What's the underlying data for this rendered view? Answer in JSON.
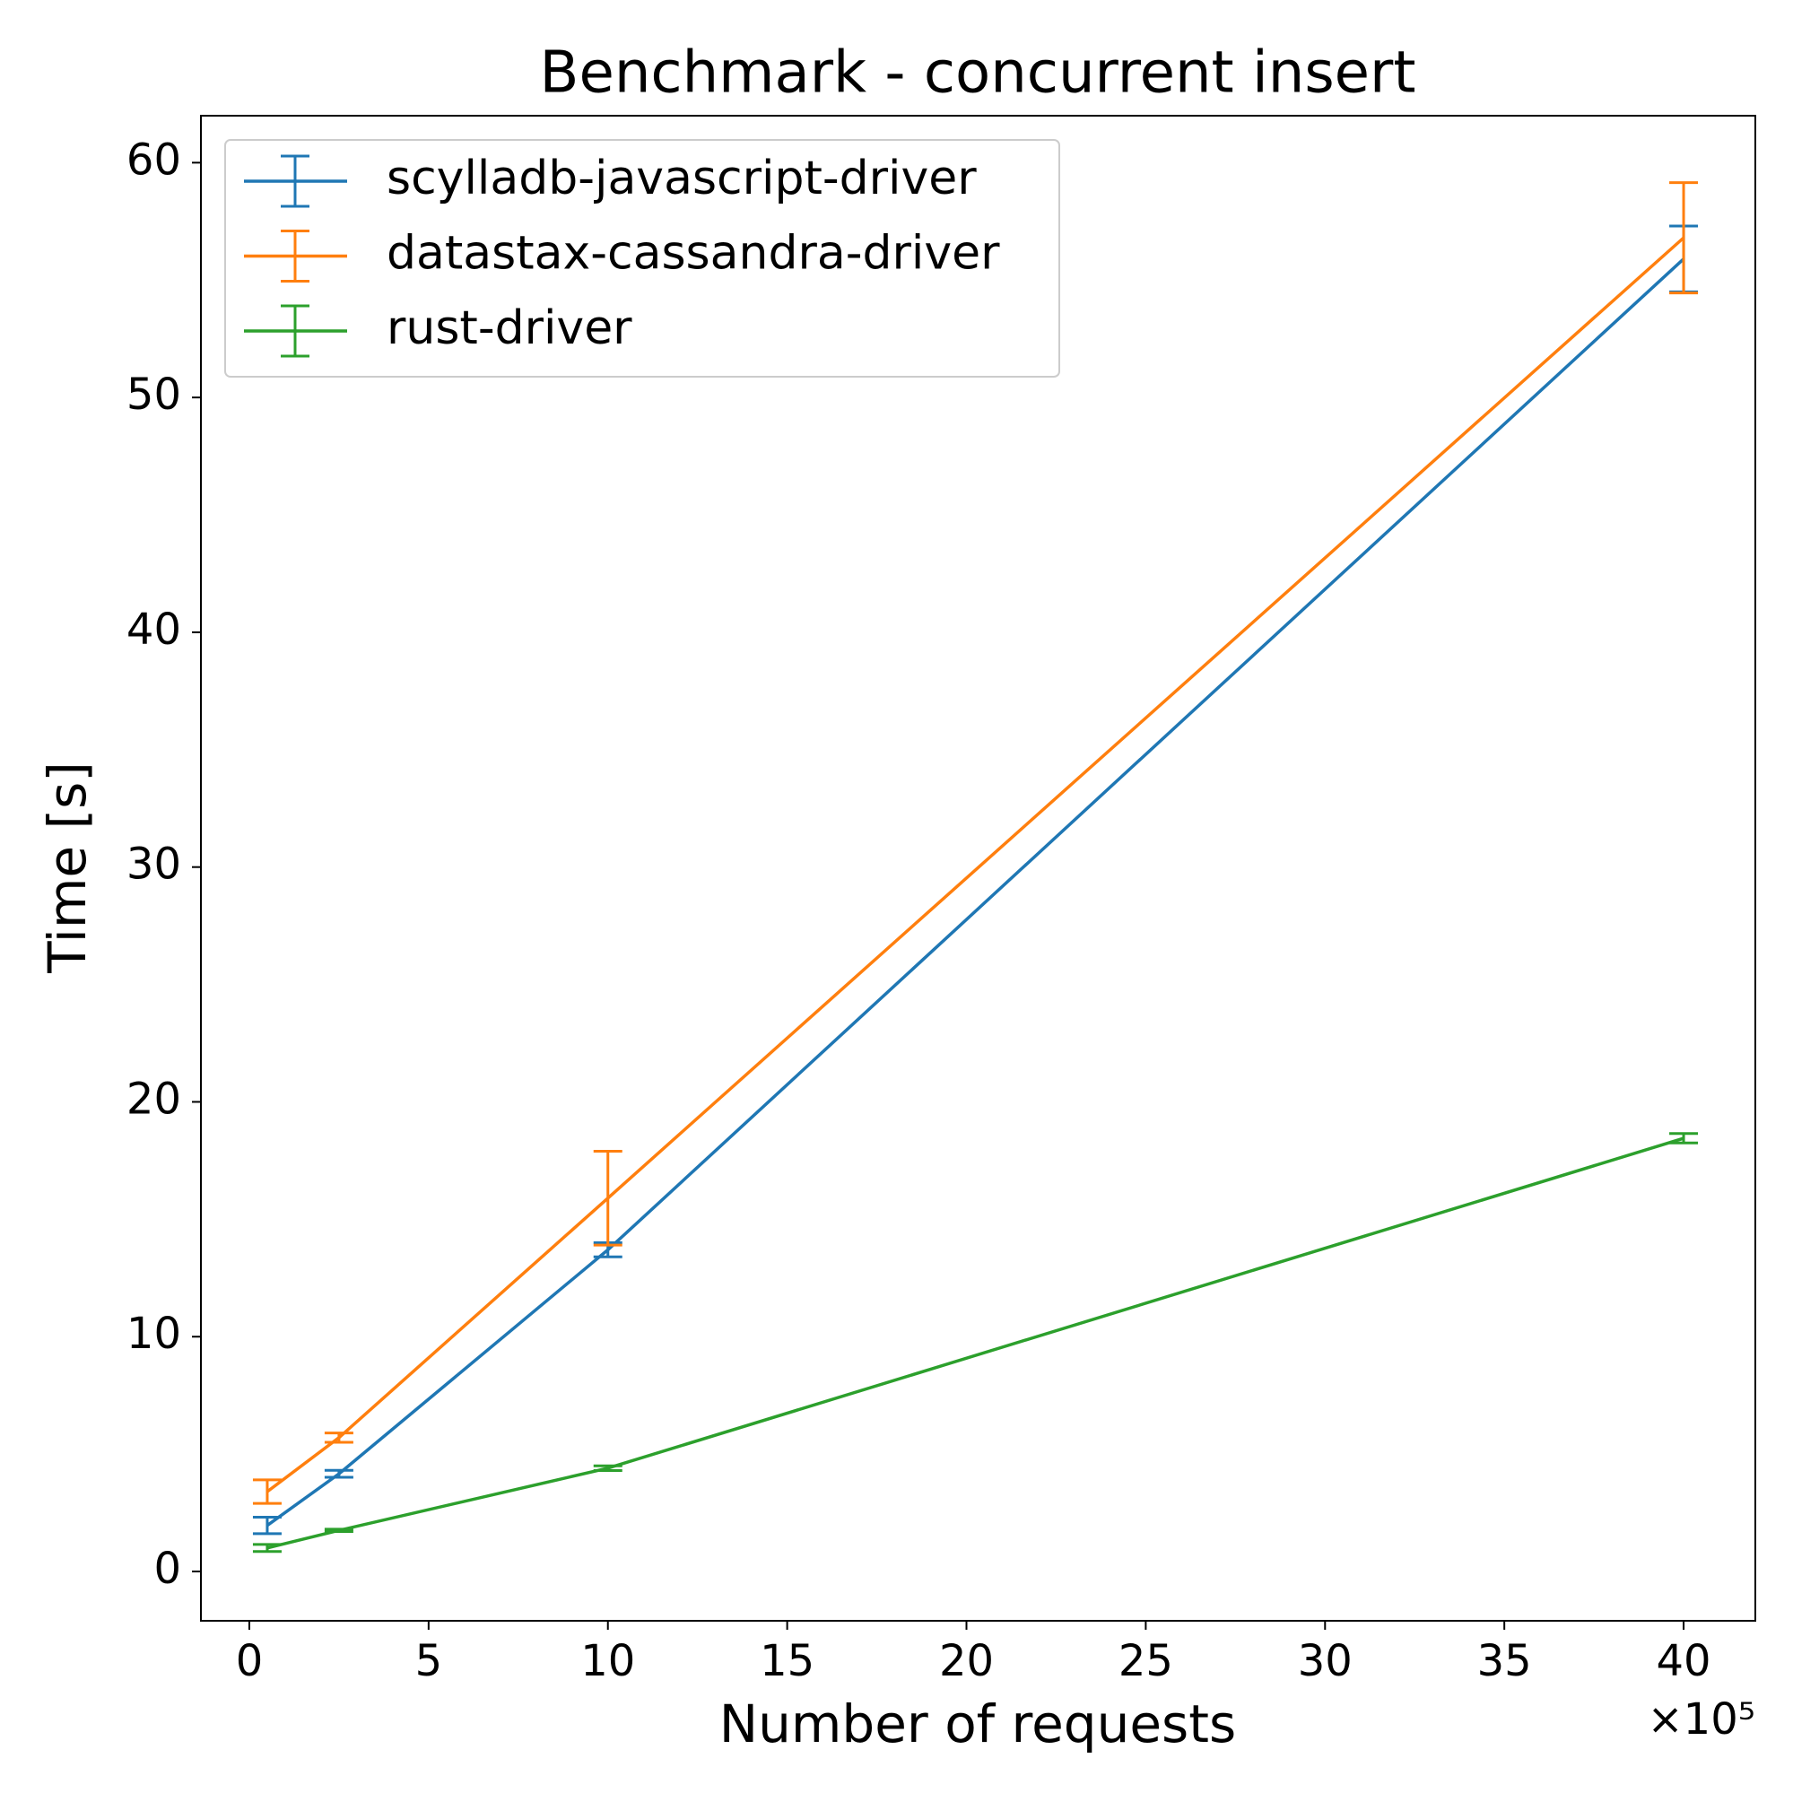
{
  "chart_data": {
    "type": "errorbar",
    "title": "Benchmark - concurrent insert",
    "x_label": "Number of requests",
    "y_label": "Time [s]",
    "x_offset_label": "×10⁵",
    "x": [
      0.5,
      2.5,
      10,
      40
    ],
    "series": [
      {
        "name": "scylladb-javascript-driver",
        "color": "#1f77b4",
        "values": [
          1.96,
          4.16,
          13.7,
          55.9
        ],
        "errors": [
          0.35,
          0.15,
          0.3,
          1.4
        ]
      },
      {
        "name": "datastax-cassandra-driver",
        "color": "#ff7f0e",
        "values": [
          3.4,
          5.7,
          15.9,
          56.8
        ],
        "errors": [
          0.5,
          0.2,
          2.0,
          2.35
        ]
      },
      {
        "name": "rust-driver",
        "color": "#2ca02c",
        "values": [
          1.0,
          1.75,
          4.4,
          18.45
        ],
        "errors": [
          0.15,
          0.05,
          0.1,
          0.2
        ]
      }
    ],
    "xlim": [
      -1.35,
      42
    ],
    "xticks": [
      0,
      5,
      10,
      15,
      20,
      25,
      30,
      35,
      40
    ],
    "ylim": [
      -2.1,
      62
    ],
    "yticks": [
      0,
      10,
      20,
      30,
      40,
      50,
      60
    ],
    "legend": "upper left"
  }
}
